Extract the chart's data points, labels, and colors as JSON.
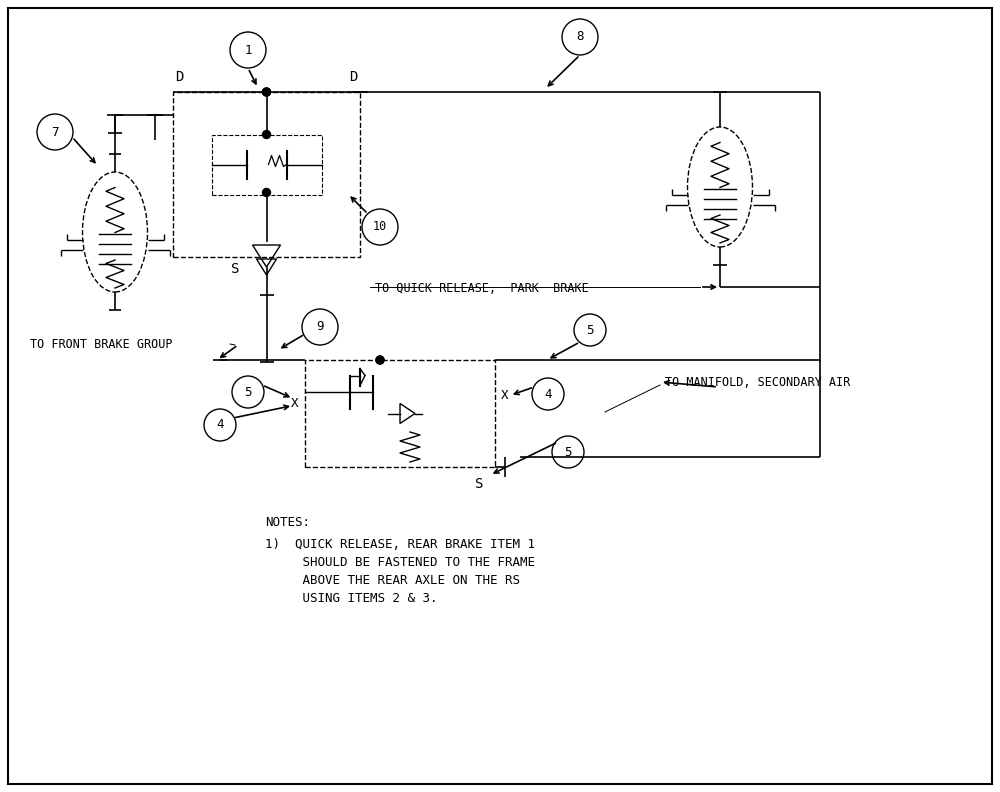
{
  "bg_color": "#ffffff",
  "lw": 1.2,
  "notes_line1": "NOTES:",
  "notes_line2": "1)  QUICK RELEASE, REAR BRAKE ITEM 1",
  "notes_line3": "     SHOULD BE FASTENED TO THE FRAME",
  "notes_line4": "     ABOVE THE REAR AXLE ON THE RS",
  "notes_line5": "     USING ITEMS 2 & 3.",
  "label_qr": "TO QUICK RELEASE,  PARK  BRAKE",
  "label_fb": "TO FRONT BRAKE GROUP",
  "label_mf": "TO MANIFOLD, SECONDARY AIR"
}
